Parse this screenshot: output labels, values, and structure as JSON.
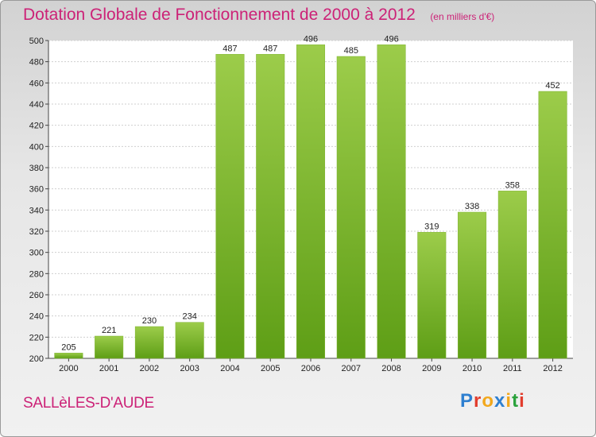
{
  "header": {
    "title": "Dotation Globale de Fonctionnement de 2000 à 2012",
    "subtitle": "(en milliers d'€)"
  },
  "footer": {
    "town": "SALLèLES-D'AUDE",
    "logo_letters": [
      "P",
      "r",
      "o",
      "x",
      "i",
      "t",
      "i"
    ],
    "logo_colors": [
      "#2e7fd0",
      "#e23d2d",
      "#f2a81d",
      "#2e7fd0",
      "#f2a81d",
      "#2aa23c",
      "#e23d2d"
    ]
  },
  "chart_data": {
    "type": "bar",
    "title": "Dotation Globale de Fonctionnement de 2000 à 2012",
    "subtitle": "(en milliers d'€)",
    "categories": [
      "2000",
      "2001",
      "2002",
      "2003",
      "2004",
      "2005",
      "2006",
      "2007",
      "2008",
      "2009",
      "2010",
      "2011",
      "2012"
    ],
    "values": [
      205,
      221,
      230,
      234,
      487,
      487,
      496,
      485,
      496,
      319,
      338,
      358,
      452
    ],
    "ylim": [
      200,
      500
    ],
    "yticks": [
      200,
      220,
      240,
      260,
      280,
      300,
      320,
      340,
      360,
      380,
      400,
      420,
      440,
      460,
      480,
      500
    ],
    "grid": true,
    "bar_color_top": "#9ccc4a",
    "bar_color_bottom": "#5e9e16"
  }
}
